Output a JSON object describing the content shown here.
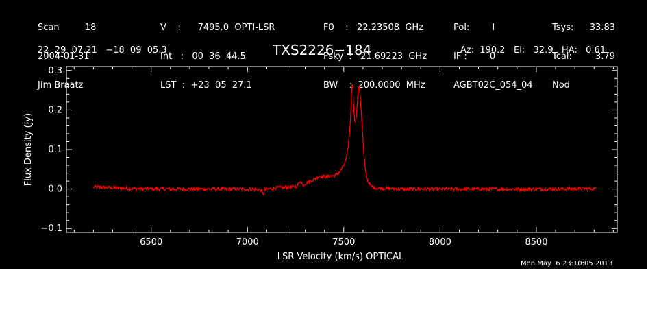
{
  "header": {
    "col1": [
      "Scan         18",
      "2004-01-31",
      "Jim Braatz"
    ],
    "col2": [
      "V    :      7495.0  OPTI-LSR",
      "Int   :   00  36  44.5",
      "LST  :  +23  05  27.1"
    ],
    "col3": [
      "F0    :   22.23508  GHz",
      "Fsky  :   21.69223  GHz",
      "BW    :  200.0000  MHz"
    ],
    "col4": [
      "Pol:        I",
      "IF :        0",
      "AGBT02C_054_04"
    ],
    "col5": [
      "Tsys:",
      "Tcal:",
      "Nod"
    ],
    "col6": [
      "33.83",
      "3.79",
      ""
    ],
    "coords": "22  29  07.21   −18  09  05.3",
    "source": "TXS2226−184",
    "pointing": "Az:  190.2   El:   32.9   HA:   0.61",
    "timestamp": "Mon May  6 23:10:05 2013"
  },
  "colors": {
    "background": "#000000",
    "axes": "#ffffff",
    "spectrum": "#ff0000"
  },
  "chart_data": {
    "type": "line",
    "xlabel": "LSR Velocity (km/s) OPTICAL",
    "ylabel": "Flux Density (Jy)",
    "xlim": [
      6060,
      8920
    ],
    "ylim": [
      -0.11,
      0.31
    ],
    "xticks": [
      6500,
      7000,
      7500,
      8000,
      8500
    ],
    "yticks": [
      -0.1,
      0.0,
      0.1,
      0.2,
      0.3
    ],
    "ytick_labels": [
      "−0.1",
      "0.0",
      "0.1",
      "0.2",
      "0.3"
    ],
    "grid": false,
    "series": [
      {
        "values": [
          [
            6200,
            0.005
          ],
          [
            6400,
            0.001
          ],
          [
            6600,
            0.0
          ],
          [
            6800,
            0.0
          ],
          [
            7000,
            0.0
          ],
          [
            7070,
            -0.002
          ],
          [
            7080,
            -0.015
          ],
          [
            7090,
            -0.002
          ],
          [
            7150,
            0.003
          ],
          [
            7200,
            0.004
          ],
          [
            7250,
            0.006
          ],
          [
            7265,
            0.012
          ],
          [
            7275,
            0.022
          ],
          [
            7285,
            0.01
          ],
          [
            7300,
            0.014
          ],
          [
            7330,
            0.02
          ],
          [
            7350,
            0.026
          ],
          [
            7375,
            0.033
          ],
          [
            7400,
            0.031
          ],
          [
            7430,
            0.033
          ],
          [
            7460,
            0.035
          ],
          [
            7480,
            0.045
          ],
          [
            7500,
            0.06
          ],
          [
            7510,
            0.07
          ],
          [
            7520,
            0.095
          ],
          [
            7530,
            0.14
          ],
          [
            7537,
            0.2
          ],
          [
            7542,
            0.26
          ],
          [
            7546,
            0.275
          ],
          [
            7550,
            0.22
          ],
          [
            7555,
            0.18
          ],
          [
            7562,
            0.17
          ],
          [
            7568,
            0.2
          ],
          [
            7575,
            0.255
          ],
          [
            7580,
            0.262
          ],
          [
            7585,
            0.24
          ],
          [
            7590,
            0.2
          ],
          [
            7598,
            0.14
          ],
          [
            7605,
            0.08
          ],
          [
            7615,
            0.04
          ],
          [
            7625,
            0.02
          ],
          [
            7640,
            0.008
          ],
          [
            7660,
            0.003
          ],
          [
            7700,
            0.002
          ],
          [
            7800,
            0.0
          ],
          [
            8000,
            0.0
          ],
          [
            8200,
            0.0
          ],
          [
            8400,
            0.0
          ],
          [
            8600,
            0.0
          ],
          [
            8700,
            0.001
          ],
          [
            8810,
            0.001
          ]
        ]
      }
    ]
  }
}
